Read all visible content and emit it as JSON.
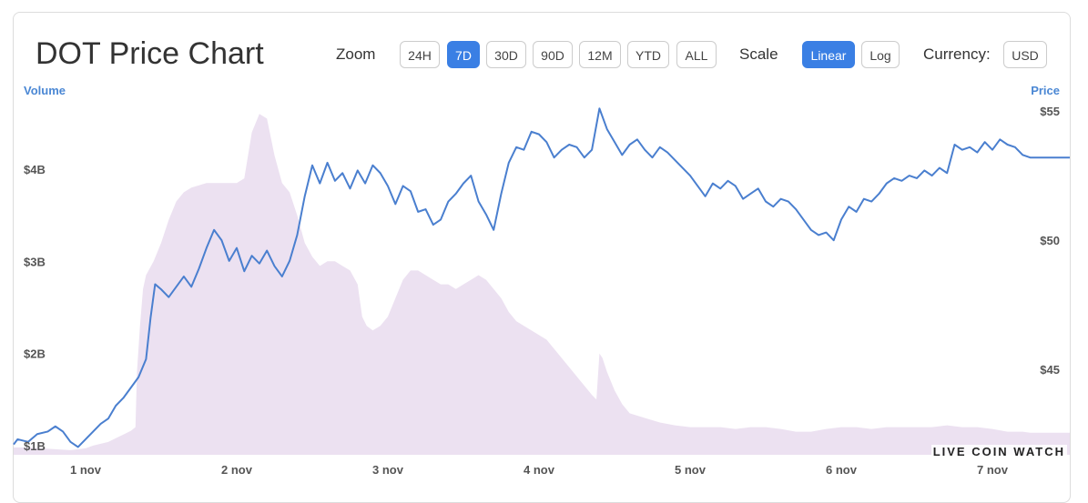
{
  "header": {
    "title": "DOT Price Chart",
    "zoom_label": "Zoom",
    "scale_label": "Scale",
    "currency_label": "Currency:",
    "zoom_options": [
      "24H",
      "7D",
      "30D",
      "90D",
      "12M",
      "YTD",
      "ALL"
    ],
    "zoom_selected": "7D",
    "scale_options": [
      "Linear",
      "Log"
    ],
    "scale_selected": "Linear",
    "currency_value": "USD"
  },
  "brand": "LIVE COIN WATCH",
  "colors": {
    "price_line": "#4a7fcf",
    "volume_fill": "#ece1f1",
    "accent": "#3a7fe4"
  },
  "chart_data": {
    "type": "line",
    "xlabel": "",
    "x_ticks": [
      "1 nov",
      "2 nov",
      "3 nov",
      "4 nov",
      "5 nov",
      "6 nov",
      "7 nov"
    ],
    "y_left": {
      "title": "Volume",
      "ticks": [
        "$1B",
        "$2B",
        "$3B",
        "$4B"
      ],
      "tick_values": [
        1,
        2,
        3,
        4
      ],
      "range": [
        0.9,
        4.8
      ]
    },
    "y_right": {
      "title": "Price",
      "ticks": [
        "$45",
        "$50",
        "$55"
      ],
      "tick_values": [
        45,
        50,
        55
      ],
      "range": [
        41.7,
        55.6
      ]
    },
    "grid": false,
    "series": [
      {
        "axis": "right",
        "type": "line",
        "points": [
          [
            0.5,
            42.1
          ],
          [
            0.55,
            42.3
          ],
          [
            0.62,
            42.2
          ],
          [
            0.68,
            42.5
          ],
          [
            0.75,
            42.6
          ],
          [
            0.8,
            42.8
          ],
          [
            0.85,
            42.6
          ],
          [
            0.9,
            42.2
          ],
          [
            0.95,
            42.0
          ],
          [
            1.0,
            42.3
          ],
          [
            1.05,
            42.6
          ],
          [
            1.1,
            42.9
          ],
          [
            1.15,
            43.1
          ],
          [
            1.2,
            43.6
          ],
          [
            1.25,
            43.9
          ],
          [
            1.3,
            44.3
          ],
          [
            1.35,
            44.7
          ],
          [
            1.4,
            45.4
          ],
          [
            1.43,
            47.0
          ],
          [
            1.46,
            48.3
          ],
          [
            1.5,
            48.1
          ],
          [
            1.55,
            47.8
          ],
          [
            1.6,
            48.2
          ],
          [
            1.65,
            48.6
          ],
          [
            1.7,
            48.2
          ],
          [
            1.75,
            48.9
          ],
          [
            1.8,
            49.7
          ],
          [
            1.85,
            50.4
          ],
          [
            1.9,
            50.0
          ],
          [
            1.95,
            49.2
          ],
          [
            2.0,
            49.7
          ],
          [
            2.05,
            48.8
          ],
          [
            2.1,
            49.4
          ],
          [
            2.15,
            49.1
          ],
          [
            2.2,
            49.6
          ],
          [
            2.25,
            49.0
          ],
          [
            2.3,
            48.6
          ],
          [
            2.35,
            49.2
          ],
          [
            2.4,
            50.2
          ],
          [
            2.45,
            51.7
          ],
          [
            2.5,
            52.9
          ],
          [
            2.55,
            52.2
          ],
          [
            2.6,
            53.0
          ],
          [
            2.65,
            52.3
          ],
          [
            2.7,
            52.6
          ],
          [
            2.75,
            52.0
          ],
          [
            2.8,
            52.7
          ],
          [
            2.85,
            52.2
          ],
          [
            2.9,
            52.9
          ],
          [
            2.95,
            52.6
          ],
          [
            3.0,
            52.1
          ],
          [
            3.05,
            51.4
          ],
          [
            3.1,
            52.1
          ],
          [
            3.15,
            51.9
          ],
          [
            3.2,
            51.1
          ],
          [
            3.25,
            51.2
          ],
          [
            3.3,
            50.6
          ],
          [
            3.35,
            50.8
          ],
          [
            3.4,
            51.5
          ],
          [
            3.45,
            51.8
          ],
          [
            3.5,
            52.2
          ],
          [
            3.55,
            52.5
          ],
          [
            3.6,
            51.5
          ],
          [
            3.65,
            51.0
          ],
          [
            3.7,
            50.4
          ],
          [
            3.75,
            51.8
          ],
          [
            3.8,
            53.0
          ],
          [
            3.85,
            53.6
          ],
          [
            3.9,
            53.5
          ],
          [
            3.95,
            54.2
          ],
          [
            4.0,
            54.1
          ],
          [
            4.05,
            53.8
          ],
          [
            4.1,
            53.2
          ],
          [
            4.15,
            53.5
          ],
          [
            4.2,
            53.7
          ],
          [
            4.25,
            53.6
          ],
          [
            4.3,
            53.2
          ],
          [
            4.35,
            53.5
          ],
          [
            4.4,
            55.1
          ],
          [
            4.45,
            54.3
          ],
          [
            4.5,
            53.8
          ],
          [
            4.55,
            53.3
          ],
          [
            4.6,
            53.7
          ],
          [
            4.65,
            53.9
          ],
          [
            4.7,
            53.5
          ],
          [
            4.75,
            53.2
          ],
          [
            4.8,
            53.6
          ],
          [
            4.85,
            53.4
          ],
          [
            4.9,
            53.1
          ],
          [
            4.95,
            52.8
          ],
          [
            5.0,
            52.5
          ],
          [
            5.05,
            52.1
          ],
          [
            5.1,
            51.7
          ],
          [
            5.15,
            52.2
          ],
          [
            5.2,
            52.0
          ],
          [
            5.25,
            52.3
          ],
          [
            5.3,
            52.1
          ],
          [
            5.35,
            51.6
          ],
          [
            5.4,
            51.8
          ],
          [
            5.45,
            52.0
          ],
          [
            5.5,
            51.5
          ],
          [
            5.55,
            51.3
          ],
          [
            5.6,
            51.6
          ],
          [
            5.65,
            51.5
          ],
          [
            5.7,
            51.2
          ],
          [
            5.75,
            50.8
          ],
          [
            5.8,
            50.4
          ],
          [
            5.85,
            50.2
          ],
          [
            5.9,
            50.3
          ],
          [
            5.95,
            50.0
          ],
          [
            6.0,
            50.8
          ],
          [
            6.05,
            51.3
          ],
          [
            6.1,
            51.1
          ],
          [
            6.15,
            51.6
          ],
          [
            6.2,
            51.5
          ],
          [
            6.25,
            51.8
          ],
          [
            6.3,
            52.2
          ],
          [
            6.35,
            52.4
          ],
          [
            6.4,
            52.3
          ],
          [
            6.45,
            52.5
          ],
          [
            6.5,
            52.4
          ],
          [
            6.55,
            52.7
          ],
          [
            6.6,
            52.5
          ],
          [
            6.65,
            52.8
          ],
          [
            6.7,
            52.6
          ],
          [
            6.75,
            53.7
          ],
          [
            6.8,
            53.5
          ],
          [
            6.85,
            53.6
          ],
          [
            6.9,
            53.4
          ],
          [
            6.95,
            53.8
          ],
          [
            7.0,
            53.5
          ],
          [
            7.05,
            53.9
          ],
          [
            7.1,
            53.7
          ],
          [
            7.15,
            53.6
          ],
          [
            7.2,
            53.3
          ],
          [
            7.25,
            53.2
          ]
        ]
      },
      {
        "axis": "left",
        "type": "area",
        "points": [
          [
            0.5,
            0.98
          ],
          [
            0.6,
            0.98
          ],
          [
            0.7,
            0.97
          ],
          [
            0.8,
            0.96
          ],
          [
            0.9,
            0.95
          ],
          [
            1.0,
            0.97
          ],
          [
            1.05,
            1.0
          ],
          [
            1.1,
            1.02
          ],
          [
            1.15,
            1.04
          ],
          [
            1.2,
            1.08
          ],
          [
            1.25,
            1.12
          ],
          [
            1.3,
            1.16
          ],
          [
            1.33,
            1.2
          ],
          [
            1.34,
            1.8
          ],
          [
            1.36,
            2.3
          ],
          [
            1.38,
            2.7
          ],
          [
            1.4,
            2.85
          ],
          [
            1.45,
            3.0
          ],
          [
            1.5,
            3.2
          ],
          [
            1.55,
            3.45
          ],
          [
            1.6,
            3.65
          ],
          [
            1.65,
            3.75
          ],
          [
            1.7,
            3.8
          ],
          [
            1.8,
            3.85
          ],
          [
            1.9,
            3.85
          ],
          [
            2.0,
            3.85
          ],
          [
            2.05,
            3.9
          ],
          [
            2.1,
            4.4
          ],
          [
            2.15,
            4.6
          ],
          [
            2.2,
            4.55
          ],
          [
            2.25,
            4.15
          ],
          [
            2.3,
            3.85
          ],
          [
            2.35,
            3.75
          ],
          [
            2.4,
            3.5
          ],
          [
            2.45,
            3.2
          ],
          [
            2.5,
            3.05
          ],
          [
            2.55,
            2.95
          ],
          [
            2.6,
            3.0
          ],
          [
            2.65,
            3.0
          ],
          [
            2.7,
            2.95
          ],
          [
            2.75,
            2.9
          ],
          [
            2.8,
            2.75
          ],
          [
            2.83,
            2.4
          ],
          [
            2.86,
            2.3
          ],
          [
            2.9,
            2.25
          ],
          [
            2.95,
            2.3
          ],
          [
            3.0,
            2.4
          ],
          [
            3.05,
            2.6
          ],
          [
            3.1,
            2.8
          ],
          [
            3.15,
            2.9
          ],
          [
            3.2,
            2.9
          ],
          [
            3.25,
            2.85
          ],
          [
            3.3,
            2.8
          ],
          [
            3.35,
            2.75
          ],
          [
            3.4,
            2.75
          ],
          [
            3.45,
            2.7
          ],
          [
            3.5,
            2.75
          ],
          [
            3.55,
            2.8
          ],
          [
            3.6,
            2.85
          ],
          [
            3.65,
            2.8
          ],
          [
            3.7,
            2.7
          ],
          [
            3.75,
            2.6
          ],
          [
            3.8,
            2.45
          ],
          [
            3.85,
            2.35
          ],
          [
            3.9,
            2.3
          ],
          [
            3.95,
            2.25
          ],
          [
            4.0,
            2.2
          ],
          [
            4.05,
            2.15
          ],
          [
            4.1,
            2.05
          ],
          [
            4.15,
            1.95
          ],
          [
            4.2,
            1.85
          ],
          [
            4.25,
            1.75
          ],
          [
            4.3,
            1.65
          ],
          [
            4.35,
            1.55
          ],
          [
            4.38,
            1.5
          ],
          [
            4.4,
            2.0
          ],
          [
            4.42,
            1.95
          ],
          [
            4.45,
            1.8
          ],
          [
            4.5,
            1.6
          ],
          [
            4.55,
            1.45
          ],
          [
            4.6,
            1.35
          ],
          [
            4.7,
            1.3
          ],
          [
            4.8,
            1.25
          ],
          [
            4.9,
            1.22
          ],
          [
            5.0,
            1.2
          ],
          [
            5.1,
            1.2
          ],
          [
            5.2,
            1.2
          ],
          [
            5.3,
            1.18
          ],
          [
            5.4,
            1.2
          ],
          [
            5.5,
            1.2
          ],
          [
            5.6,
            1.18
          ],
          [
            5.7,
            1.15
          ],
          [
            5.8,
            1.15
          ],
          [
            5.9,
            1.18
          ],
          [
            6.0,
            1.2
          ],
          [
            6.1,
            1.2
          ],
          [
            6.2,
            1.18
          ],
          [
            6.3,
            1.2
          ],
          [
            6.4,
            1.2
          ],
          [
            6.5,
            1.2
          ],
          [
            6.6,
            1.2
          ],
          [
            6.7,
            1.22
          ],
          [
            6.8,
            1.2
          ],
          [
            6.9,
            1.2
          ],
          [
            7.0,
            1.18
          ],
          [
            7.1,
            1.15
          ],
          [
            7.2,
            1.15
          ],
          [
            7.25,
            1.14
          ]
        ]
      }
    ]
  }
}
